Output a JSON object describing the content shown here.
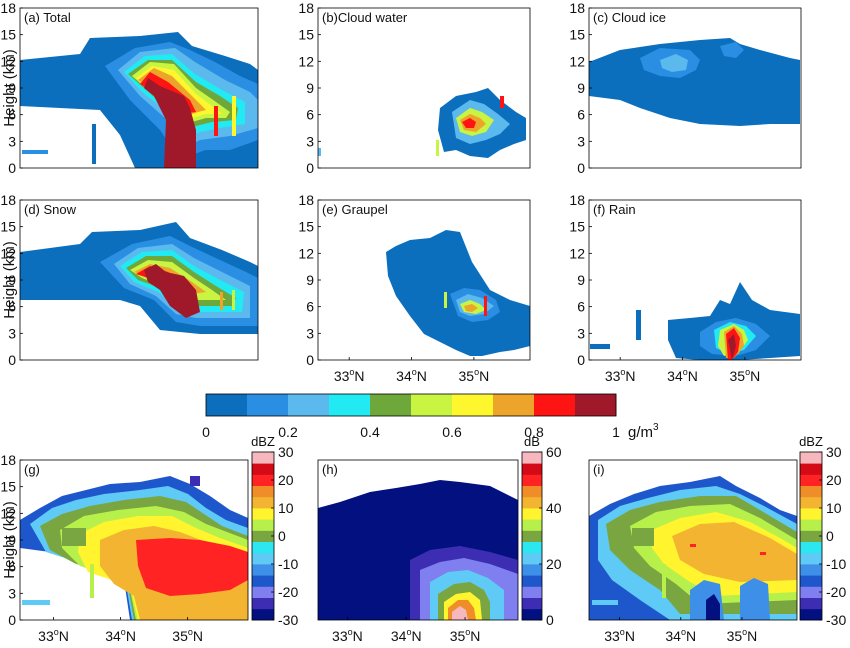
{
  "colors": {
    "mass_scale": [
      "#0b6fbd",
      "#2a8fe3",
      "#5bb9ee",
      "#21eaf2",
      "#6fa83a",
      "#c9f441",
      "#fff72e",
      "#eda42a",
      "#ff1414",
      "#a0192a"
    ],
    "dbz_scale": [
      "#031080",
      "#3d2db3",
      "#7f7ff0",
      "#1e57cc",
      "#3d8fe8",
      "#5ecaf5",
      "#2ce6f0",
      "#79a640",
      "#b8f04b",
      "#fff42e",
      "#f3b431",
      "#ef8d28",
      "#ff2323",
      "#d40a17",
      "#f6b8bd"
    ],
    "db_scale": [
      "#031080",
      "#3d2db3",
      "#7f7ff0",
      "#1e57cc",
      "#3d8fe8",
      "#5ecaf5",
      "#2ce6f0",
      "#79a640",
      "#b8f04b",
      "#fff42e",
      "#f3b431",
      "#ef8d28",
      "#ff2323",
      "#d40a17",
      "#f6b8bd"
    ]
  },
  "chart_data": [
    {
      "id": "a",
      "type": "heatmap",
      "title": "(a) Total",
      "ylabel": "Height (km)",
      "ylim": [
        0,
        18
      ],
      "yticks": [
        "0",
        "3",
        "6",
        "9",
        "12",
        "15",
        "18"
      ],
      "xlim": [
        32.5,
        35.9
      ],
      "xticks": [],
      "cloud_top_km": 15,
      "cloud_base_km": 6.5,
      "max_g_m3": 1.0
    },
    {
      "id": "b",
      "type": "heatmap",
      "title": "(b)Cloud water",
      "ylabel": "",
      "ylim": [
        0,
        18
      ],
      "yticks": [
        "0",
        "3",
        "6",
        "9",
        "12",
        "15",
        "18"
      ],
      "xlim": [
        32.5,
        35.9
      ],
      "xticks": [],
      "cloud_top_km": 8.5,
      "cloud_base_km": 1,
      "max_g_m3": 1.0
    },
    {
      "id": "c",
      "type": "heatmap",
      "title": "(c) Cloud ice",
      "ylabel": "",
      "ylim": [
        0,
        18
      ],
      "yticks": [
        "0",
        "3",
        "6",
        "9",
        "12",
        "15",
        "18"
      ],
      "xlim": [
        32.5,
        35.9
      ],
      "xticks": [],
      "cloud_top_km": 15,
      "cloud_base_km": 5,
      "max_g_m3": 0.3
    },
    {
      "id": "d",
      "type": "heatmap",
      "title": "(d) Snow",
      "ylabel": "Height (km)",
      "ylim": [
        0,
        18
      ],
      "yticks": [
        "0",
        "3",
        "6",
        "9",
        "12",
        "15",
        "18"
      ],
      "xlim": [
        32.5,
        35.9
      ],
      "xticks": [],
      "cloud_top_km": 15,
      "cloud_base_km": 3,
      "max_g_m3": 1.0
    },
    {
      "id": "e",
      "type": "heatmap",
      "title": "(e) Graupel",
      "ylabel": "",
      "ylim": [
        0,
        18
      ],
      "yticks": [
        "0",
        "3",
        "6",
        "9",
        "12",
        "15",
        "18"
      ],
      "xlim": [
        32.5,
        35.9
      ],
      "xticks": [
        {
          "v": 33,
          "t": "33ºN"
        },
        {
          "v": 34,
          "t": "34ºN"
        },
        {
          "v": 35,
          "t": "35ºN"
        }
      ],
      "cloud_top_km": 14,
      "cloud_base_km": 0.5,
      "max_g_m3": 0.9
    },
    {
      "id": "f",
      "type": "heatmap",
      "title": "(f) Rain",
      "ylabel": "",
      "ylim": [
        0,
        18
      ],
      "yticks": [
        "0",
        "3",
        "6",
        "9",
        "12",
        "15",
        "18"
      ],
      "xlim": [
        32.5,
        35.9
      ],
      "xticks": [
        {
          "v": 33,
          "t": "33ºN"
        },
        {
          "v": 34,
          "t": "34ºN"
        },
        {
          "v": 35,
          "t": "35ºN"
        }
      ],
      "cloud_top_km": 9,
      "cloud_base_km": 0,
      "max_g_m3": 1.0
    },
    {
      "id": "g",
      "type": "heatmap",
      "title": "(g)",
      "ylabel": "Height (km)",
      "ylim": [
        0,
        18
      ],
      "yticks": [
        "0",
        "3",
        "6",
        "9",
        "12",
        "15",
        "18"
      ],
      "xlim": [
        32.5,
        35.9
      ],
      "xticks": [
        {
          "v": 33,
          "t": "33ºN"
        },
        {
          "v": 34,
          "t": "34ºN"
        },
        {
          "v": 35,
          "t": "35ºN"
        }
      ],
      "colorbar": {
        "unit": "dBZ",
        "min": -30,
        "max": 30,
        "ticks": [
          "30",
          "20",
          "10",
          "0",
          "-10",
          "-20",
          "-30"
        ]
      }
    },
    {
      "id": "h",
      "type": "heatmap",
      "title": "(h)",
      "ylabel": "",
      "ylim": [
        0,
        18
      ],
      "yticks": [],
      "xlim": [
        32.5,
        35.9
      ],
      "xticks": [
        {
          "v": 33,
          "t": "33ºN"
        },
        {
          "v": 34,
          "t": "34ºN"
        },
        {
          "v": 35,
          "t": "35ºN"
        }
      ],
      "colorbar": {
        "unit": "dB",
        "min": 0,
        "max": 60,
        "ticks": [
          "60",
          "40",
          "20",
          "0"
        ]
      }
    },
    {
      "id": "i",
      "type": "heatmap",
      "title": "(i)",
      "ylabel": "",
      "ylim": [
        0,
        18
      ],
      "yticks": [],
      "xlim": [
        32.5,
        35.9
      ],
      "xticks": [
        {
          "v": 33,
          "t": "33ºN"
        },
        {
          "v": 34,
          "t": "34ºN"
        },
        {
          "v": 35,
          "t": "35ºN"
        }
      ],
      "colorbar": {
        "unit": "dBZ",
        "min": -30,
        "max": 30,
        "ticks": [
          "30",
          "20",
          "10",
          "0",
          "-10",
          "-20",
          "-30"
        ]
      }
    }
  ],
  "mass_colorbar": {
    "unit": "g/m",
    "unit_sup": "3",
    "ticks": [
      "0",
      "0.2",
      "0.4",
      "0.6",
      "0.8",
      "1"
    ],
    "min": 0,
    "max": 1
  }
}
